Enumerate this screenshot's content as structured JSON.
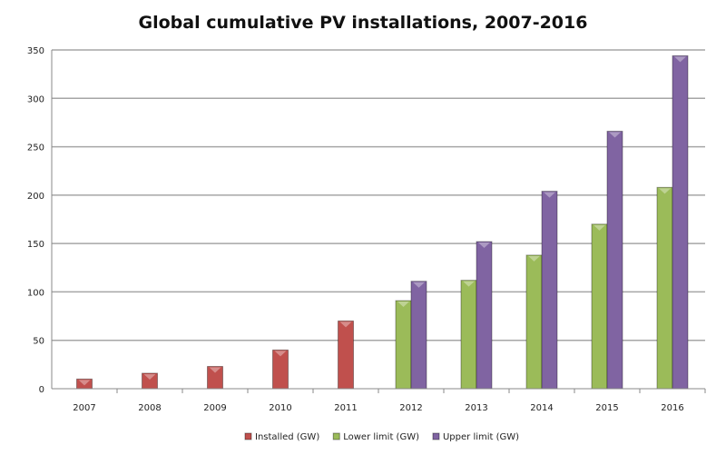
{
  "chart_data": {
    "type": "bar",
    "title": "Global cumulative PV installations, 2007-2016",
    "xlabel": "",
    "ylabel": "",
    "categories": [
      "2007",
      "2008",
      "2009",
      "2010",
      "2011",
      "2012",
      "2013",
      "2014",
      "2015",
      "2016"
    ],
    "ylim": [
      0,
      350
    ],
    "yticks": [
      0,
      50,
      100,
      150,
      200,
      250,
      300,
      350
    ],
    "grid": true,
    "legend_position": "bottom",
    "series": [
      {
        "name": "Installed (GW)",
        "color": "#c0504d",
        "values": [
          10,
          16,
          23,
          40,
          70,
          null,
          null,
          null,
          null,
          null
        ]
      },
      {
        "name": "Lower limit (GW)",
        "color": "#9bbb59",
        "values": [
          null,
          null,
          null,
          null,
          null,
          91,
          112,
          138,
          170,
          208
        ]
      },
      {
        "name": "Upper limit (GW)",
        "color": "#8064a2",
        "values": [
          null,
          null,
          null,
          null,
          null,
          111,
          152,
          204,
          266,
          344
        ]
      }
    ]
  }
}
